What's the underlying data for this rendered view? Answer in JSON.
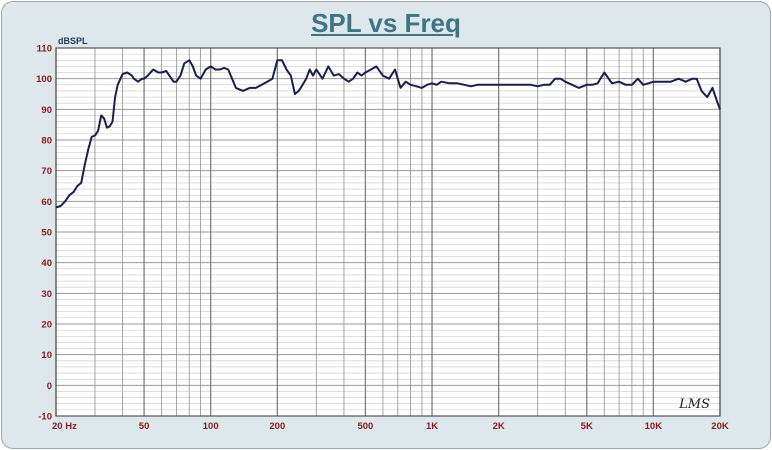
{
  "chart_data": {
    "type": "line",
    "title": "SPL vs Freq",
    "ylabel": "dBSPL",
    "xlabel": "",
    "xscale": "log",
    "xlim": [
      20,
      20000
    ],
    "ylim": [
      -10,
      110
    ],
    "yticks": [
      -10,
      0,
      10,
      20,
      30,
      40,
      50,
      60,
      70,
      80,
      90,
      100,
      110
    ],
    "xticks": [
      {
        "value": 20,
        "label": "20  Hz"
      },
      {
        "value": 50,
        "label": "50"
      },
      {
        "value": 100,
        "label": "100"
      },
      {
        "value": 200,
        "label": "200"
      },
      {
        "value": 500,
        "label": "500"
      },
      {
        "value": 1000,
        "label": "1K"
      },
      {
        "value": 2000,
        "label": "2K"
      },
      {
        "value": 5000,
        "label": "5K"
      },
      {
        "value": 10000,
        "label": "10K"
      },
      {
        "value": 20000,
        "label": "20K"
      }
    ],
    "grid": true,
    "watermark": "LMS",
    "colors": {
      "line": "#1a1f4d",
      "frame": "#dde7ec",
      "plot_bg": "#ffffff",
      "grid": "#9a9a9a",
      "tick_label": "#8b1a1a",
      "title": "#3d7585"
    },
    "series": [
      {
        "name": "",
        "x": [
          20,
          21,
          22,
          23,
          24,
          25,
          26,
          27,
          28,
          29,
          30,
          31,
          32,
          33,
          34,
          35,
          36,
          37,
          38,
          40,
          42,
          44,
          45,
          47,
          49,
          50,
          52,
          55,
          58,
          60,
          63,
          65,
          68,
          70,
          73,
          76,
          80,
          83,
          86,
          90,
          95,
          100,
          105,
          110,
          115,
          120,
          130,
          140,
          150,
          160,
          170,
          180,
          190,
          200,
          210,
          220,
          230,
          240,
          250,
          260,
          270,
          280,
          290,
          300,
          320,
          340,
          360,
          380,
          400,
          420,
          440,
          460,
          480,
          500,
          530,
          560,
          600,
          640,
          680,
          720,
          760,
          800,
          850,
          900,
          950,
          1000,
          1050,
          1100,
          1200,
          1300,
          1400,
          1500,
          1600,
          1700,
          1800,
          1900,
          2000,
          2200,
          2400,
          2600,
          2800,
          3000,
          3200,
          3400,
          3600,
          3800,
          4000,
          4300,
          4600,
          5000,
          5300,
          5600,
          6000,
          6500,
          7000,
          7500,
          8000,
          8500,
          9000,
          9500,
          10000,
          11000,
          12000,
          13000,
          14000,
          15000,
          15700,
          16500,
          17500,
          18500,
          19300,
          20000
        ],
        "y": [
          58,
          58.5,
          60,
          62,
          63,
          65,
          66,
          72,
          77,
          81,
          81.5,
          83,
          88,
          87,
          84,
          84.5,
          86,
          94,
          98,
          101.5,
          102,
          101,
          100,
          99,
          100,
          100,
          101,
          103,
          102,
          102,
          102.5,
          101,
          99,
          99,
          101,
          105,
          106,
          104,
          101,
          100,
          103,
          104,
          103,
          103,
          103.5,
          103,
          97,
          96,
          97,
          97,
          98,
          99,
          100,
          106,
          106,
          103,
          101,
          95,
          96,
          98,
          100,
          103,
          101,
          103,
          100,
          104,
          101,
          101.5,
          100,
          99,
          100,
          102,
          101,
          102,
          103,
          104,
          101,
          100,
          103,
          97,
          99,
          98,
          97.5,
          97,
          98,
          98.5,
          98,
          99,
          98.5,
          98.5,
          98,
          97.5,
          98,
          98,
          98,
          98,
          98,
          98,
          98,
          98,
          98,
          97.5,
          98,
          98,
          100,
          100,
          99,
          98,
          97,
          98,
          98,
          98.5,
          102,
          98.5,
          99,
          98,
          98,
          100,
          98,
          98.5,
          99,
          99,
          99,
          100,
          99,
          100,
          100,
          96,
          94,
          97,
          93,
          90
        ]
      }
    ]
  }
}
